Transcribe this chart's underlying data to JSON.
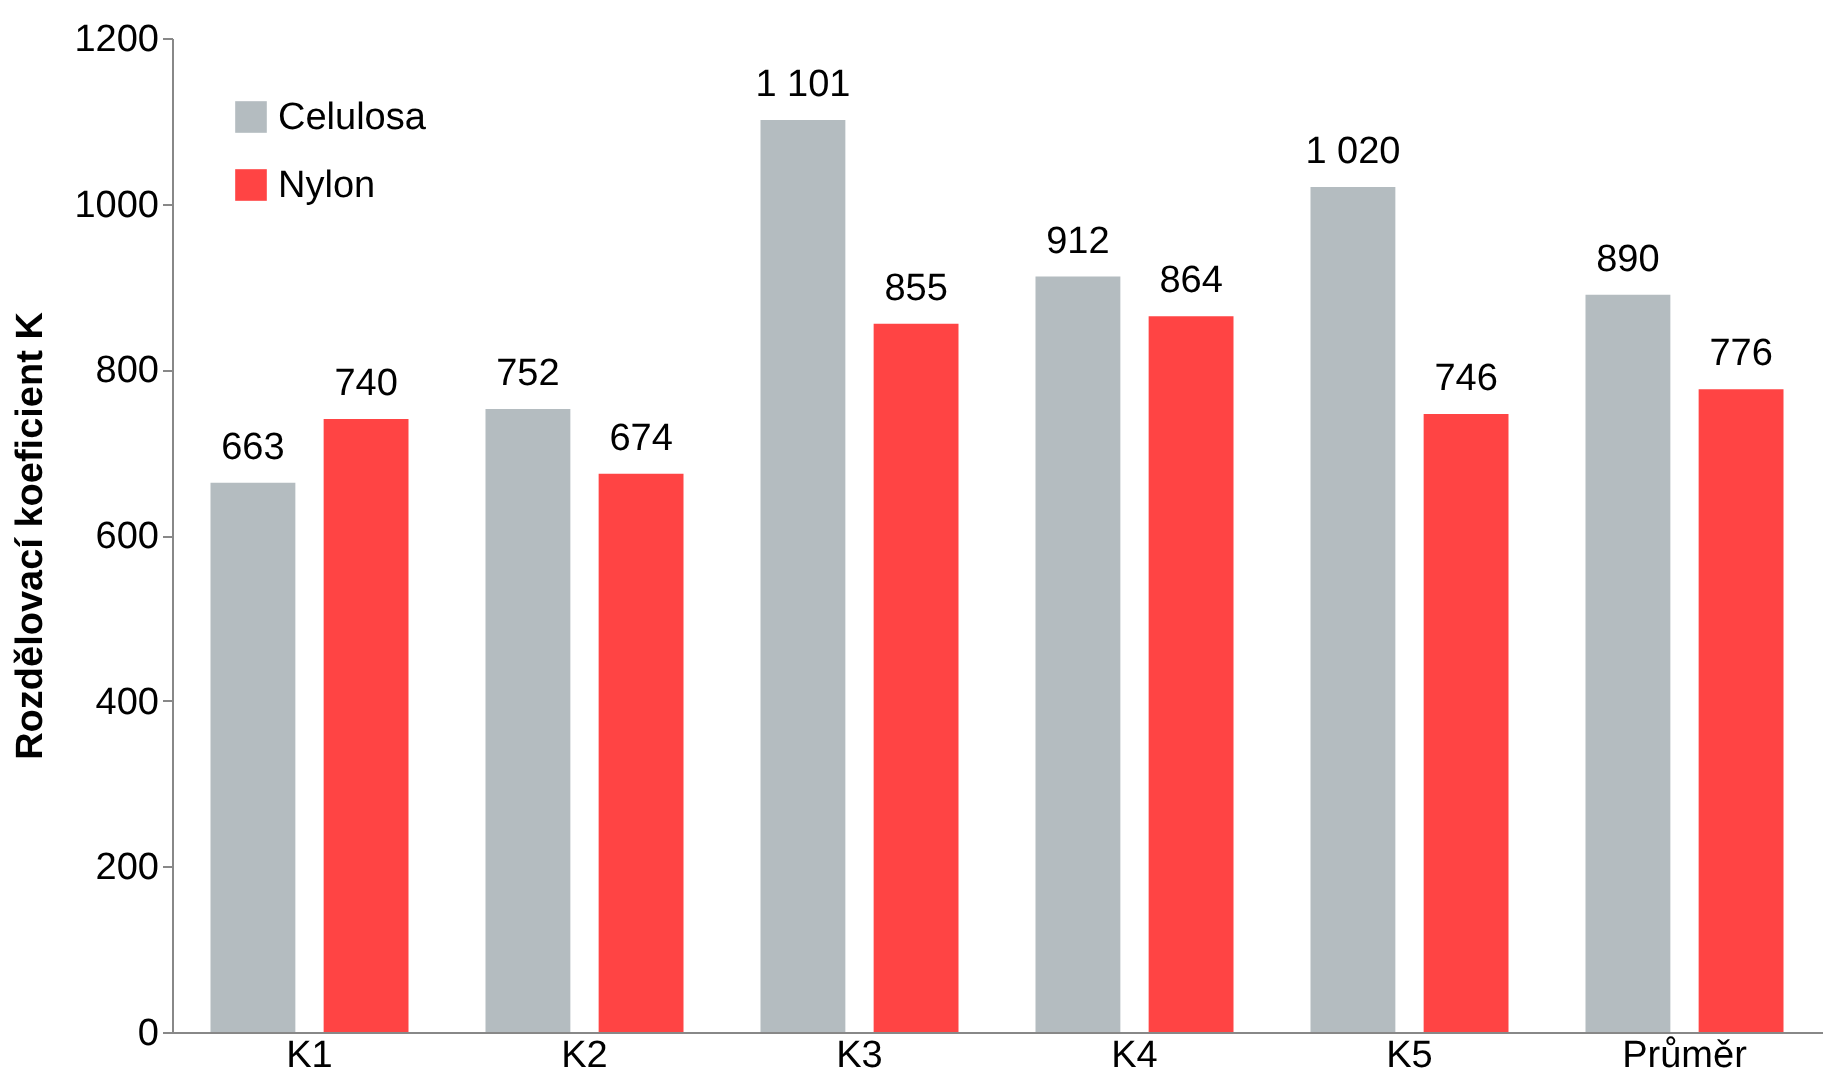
{
  "chart_data": {
    "type": "bar",
    "ylabel": "Rozdělovací koeficient K",
    "categories": [
      "K1",
      "K2",
      "K3",
      "K4",
      "K5",
      "Průměr"
    ],
    "series": [
      {
        "name": "Celulosa",
        "color": "#b4bcc0",
        "values": [
          663,
          752,
          1101,
          912,
          1020,
          890
        ],
        "value_labels": [
          "663",
          "752",
          "1 101",
          "912",
          "1 020",
          "890"
        ]
      },
      {
        "name": "Nylon",
        "color": "#ff4444",
        "values": [
          740,
          674,
          855,
          864,
          746,
          776
        ],
        "value_labels": [
          "740",
          "674",
          "855",
          "864",
          "746",
          "776"
        ]
      }
    ],
    "ylim": [
      0,
      1200
    ],
    "yticks": [
      0,
      200,
      400,
      600,
      800,
      1000,
      1200
    ],
    "grid": false,
    "legend": "top left"
  }
}
